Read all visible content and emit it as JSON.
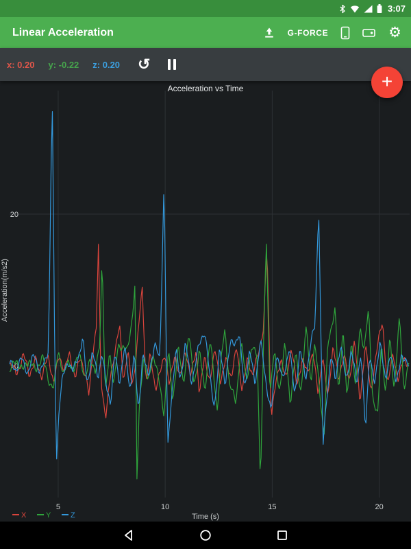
{
  "status_bar": {
    "time": "3:07",
    "icons": [
      "bluetooth-icon",
      "wifi-icon",
      "cellular-icon",
      "battery-icon"
    ]
  },
  "app_bar": {
    "title": "Linear Acceleration",
    "gforce_label": "G-FORCE",
    "icons": [
      "upload-icon",
      "device-icon",
      "record-icon",
      "settings-gear-icon"
    ]
  },
  "readout_bar": {
    "x": "x: 0.20",
    "y": "y: -0.22",
    "z": "z: 0.20",
    "icons": [
      "reset-rotate-icon",
      "pause-icon"
    ]
  },
  "fab": {
    "label": "+"
  },
  "nav_bar": {
    "icons": [
      "back-icon",
      "home-icon",
      "recents-icon"
    ]
  },
  "colors": {
    "app_bar": "#4caf50",
    "status_bar": "#388e3c",
    "readout_bar": "#383d40",
    "chart_bg": "#1a1d1f",
    "fab": "#f44336",
    "x": "#e0564a",
    "y": "#46a54c",
    "z": "#3b9fe0"
  },
  "chart_data": {
    "type": "line",
    "title": "Acceleration vs Time",
    "xlabel": "Time (s)",
    "ylabel": "Acceleration(m/s2)",
    "xlim": [
      2.73,
      21.42
    ],
    "ylim": [
      -17.4,
      36.3
    ],
    "x_ticks": [
      5,
      10,
      15,
      20
    ],
    "y_ticks": [
      0,
      20
    ],
    "grid": true,
    "grid_color": "#2d3134",
    "text_color": "#cfd2d3",
    "legend_position": "bottom-left",
    "series": [
      {
        "name": "X",
        "color": "#d9443c",
        "noise": 0.9,
        "seed": 1,
        "anchors": [
          [
            2.73,
            0.5
          ],
          [
            3.05,
            -1
          ],
          [
            3.35,
            1.3
          ],
          [
            3.65,
            -1.2
          ],
          [
            3.95,
            1
          ],
          [
            4.25,
            -1.5
          ],
          [
            4.55,
            1
          ],
          [
            4.8,
            -2
          ],
          [
            5.05,
            1.5
          ],
          [
            5.3,
            -1
          ],
          [
            5.55,
            1.8
          ],
          [
            5.8,
            -1.5
          ],
          [
            6.05,
            1.2
          ],
          [
            6.3,
            -2
          ],
          [
            6.44,
            -4
          ],
          [
            6.6,
            2
          ],
          [
            6.78,
            5
          ],
          [
            6.88,
            15.4
          ],
          [
            7.0,
            -2
          ],
          [
            7.1,
            -4.5
          ],
          [
            7.24,
            -6.9
          ],
          [
            7.4,
            -2
          ],
          [
            7.6,
            1.5
          ],
          [
            7.87,
            4.8
          ],
          [
            8.05,
            -2
          ],
          [
            8.25,
            2
          ],
          [
            8.45,
            -2.5
          ],
          [
            8.65,
            1.5
          ],
          [
            8.93,
            10
          ],
          [
            9.1,
            -2
          ],
          [
            9.3,
            1.5
          ],
          [
            9.55,
            -3
          ],
          [
            9.8,
            -1
          ],
          [
            10.0,
            2
          ],
          [
            10.2,
            -2.5
          ],
          [
            10.45,
            1.5
          ],
          [
            10.7,
            -2
          ],
          [
            10.95,
            2.5
          ],
          [
            11.2,
            -1.5
          ],
          [
            11.45,
            2
          ],
          [
            11.6,
            -4
          ],
          [
            11.85,
            1.5
          ],
          [
            12.1,
            -2
          ],
          [
            12.35,
            2
          ],
          [
            12.6,
            -2.5
          ],
          [
            12.85,
            1.5
          ],
          [
            13.1,
            -2
          ],
          [
            13.35,
            2.5
          ],
          [
            13.6,
            -3.5
          ],
          [
            13.85,
            1.5
          ],
          [
            14.1,
            -2
          ],
          [
            14.35,
            2
          ],
          [
            14.6,
            5
          ],
          [
            14.75,
            16.4
          ],
          [
            14.95,
            -7
          ],
          [
            15.15,
            -3
          ],
          [
            15.4,
            1.5
          ],
          [
            15.65,
            -2
          ],
          [
            15.9,
            2.5
          ],
          [
            16.15,
            -3
          ],
          [
            16.4,
            1.5
          ],
          [
            16.65,
            -1.5
          ],
          [
            16.9,
            2
          ],
          [
            17.15,
            -4
          ],
          [
            17.35,
            2
          ],
          [
            17.6,
            -5
          ],
          [
            17.85,
            3
          ],
          [
            18.1,
            -2
          ],
          [
            18.35,
            2
          ],
          [
            18.6,
            -3
          ],
          [
            18.85,
            4
          ],
          [
            19.1,
            -5
          ],
          [
            19.35,
            3
          ],
          [
            19.6,
            -4
          ],
          [
            19.85,
            2
          ],
          [
            20.15,
            5.7
          ],
          [
            20.4,
            -3
          ],
          [
            20.65,
            2
          ],
          [
            20.9,
            -2
          ],
          [
            21.15,
            1
          ],
          [
            21.42,
            -0.5
          ]
        ]
      },
      {
        "name": "Y",
        "color": "#2fa53c",
        "noise": 0.9,
        "seed": 2,
        "anchors": [
          [
            2.73,
            -0.4
          ],
          [
            3.05,
            0.8
          ],
          [
            3.35,
            -1
          ],
          [
            3.65,
            1.2
          ],
          [
            3.95,
            -0.8
          ],
          [
            4.25,
            1
          ],
          [
            4.55,
            -1.5
          ],
          [
            4.8,
            -3
          ],
          [
            5.0,
            2
          ],
          [
            5.25,
            -1.5
          ],
          [
            5.5,
            1.2
          ],
          [
            5.75,
            -1
          ],
          [
            6.0,
            1.8
          ],
          [
            6.25,
            -2
          ],
          [
            6.5,
            1.5
          ],
          [
            6.75,
            -1.5
          ],
          [
            6.95,
            3
          ],
          [
            7.05,
            15
          ],
          [
            7.2,
            -4
          ],
          [
            7.4,
            2
          ],
          [
            7.6,
            -2.5
          ],
          [
            7.8,
            2
          ],
          [
            8.05,
            3
          ],
          [
            8.25,
            2
          ],
          [
            8.45,
            6
          ],
          [
            8.6,
            11
          ],
          [
            8.67,
            -16.3
          ],
          [
            8.8,
            -5
          ],
          [
            9.0,
            2
          ],
          [
            9.2,
            -2.5
          ],
          [
            9.45,
            1.5
          ],
          [
            9.7,
            -2
          ],
          [
            9.95,
            -6
          ],
          [
            10.15,
            2
          ],
          [
            10.35,
            -5
          ],
          [
            10.6,
            2.5
          ],
          [
            10.85,
            -2
          ],
          [
            11.1,
            4
          ],
          [
            11.35,
            -2.5
          ],
          [
            11.6,
            2
          ],
          [
            11.85,
            -3
          ],
          [
            12.1,
            3
          ],
          [
            12.43,
            -5.5
          ],
          [
            12.65,
            2
          ],
          [
            12.8,
            5
          ],
          [
            13.0,
            -3
          ],
          [
            13.3,
            -4.5
          ],
          [
            13.55,
            3
          ],
          [
            13.8,
            -2
          ],
          [
            14.05,
            2
          ],
          [
            14.3,
            2
          ],
          [
            14.45,
            -15.5
          ],
          [
            14.6,
            3
          ],
          [
            14.72,
            17
          ],
          [
            14.9,
            -4
          ],
          [
            15.1,
            2
          ],
          [
            15.35,
            -3
          ],
          [
            15.6,
            2.5
          ],
          [
            15.85,
            -5
          ],
          [
            16.1,
            2
          ],
          [
            16.35,
            -3.5
          ],
          [
            16.6,
            5
          ],
          [
            16.8,
            -2
          ],
          [
            17.0,
            3
          ],
          [
            17.25,
            -4
          ],
          [
            17.42,
            -10
          ],
          [
            17.6,
            3
          ],
          [
            17.8,
            6
          ],
          [
            17.95,
            7.5
          ],
          [
            18.1,
            -4
          ],
          [
            18.3,
            5
          ],
          [
            18.5,
            -5
          ],
          [
            18.7,
            4
          ],
          [
            18.9,
            -3
          ],
          [
            19.1,
            5
          ],
          [
            19.3,
            2
          ],
          [
            19.5,
            7.4
          ],
          [
            19.7,
            -4
          ],
          [
            19.93,
            -6.8
          ],
          [
            20.1,
            3
          ],
          [
            20.3,
            -4
          ],
          [
            20.5,
            4
          ],
          [
            20.7,
            -3
          ],
          [
            20.95,
            6
          ],
          [
            21.15,
            -3
          ],
          [
            21.42,
            1
          ]
        ]
      },
      {
        "name": "Z",
        "color": "#3398db",
        "noise": 0.9,
        "seed": 3,
        "anchors": [
          [
            2.73,
            0.4
          ],
          [
            3.0,
            -0.8
          ],
          [
            3.3,
            0.9
          ],
          [
            3.6,
            -0.6
          ],
          [
            3.9,
            1.2
          ],
          [
            4.15,
            -1.0
          ],
          [
            4.35,
            0.6
          ],
          [
            4.55,
            2.5
          ],
          [
            4.72,
            36
          ],
          [
            4.82,
            6
          ],
          [
            4.92,
            -12.8
          ],
          [
            5.05,
            -5
          ],
          [
            5.2,
            -1.5
          ],
          [
            5.45,
            0.8
          ],
          [
            5.7,
            -1.2
          ],
          [
            5.95,
            1.5
          ],
          [
            6.15,
            3.8
          ],
          [
            6.35,
            -2.5
          ],
          [
            6.6,
            1.5
          ],
          [
            6.85,
            -1.5
          ],
          [
            7.05,
            2.2
          ],
          [
            7.25,
            -3
          ],
          [
            7.45,
            -5
          ],
          [
            7.65,
            1.5
          ],
          [
            7.85,
            -2
          ],
          [
            8.1,
            2.5
          ],
          [
            8.35,
            -3.5
          ],
          [
            8.55,
            1.5
          ],
          [
            8.75,
            -6
          ],
          [
            8.95,
            2
          ],
          [
            9.2,
            -2
          ],
          [
            9.5,
            3
          ],
          [
            9.75,
            1
          ],
          [
            9.95,
            24.9
          ],
          [
            10.05,
            2
          ],
          [
            10.12,
            -11.5
          ],
          [
            10.3,
            -4
          ],
          [
            10.5,
            2.5
          ],
          [
            10.7,
            -2
          ],
          [
            10.95,
            3
          ],
          [
            11.2,
            -2.5
          ],
          [
            11.5,
            2
          ],
          [
            11.85,
            4.5
          ],
          [
            12.1,
            -2
          ],
          [
            12.3,
            -5
          ],
          [
            12.55,
            2
          ],
          [
            12.8,
            -2.5
          ],
          [
            13.05,
            3
          ],
          [
            13.45,
            4
          ],
          [
            13.7,
            -3
          ],
          [
            13.95,
            2
          ],
          [
            14.2,
            -2
          ],
          [
            14.45,
            3
          ],
          [
            14.7,
            -2
          ],
          [
            14.95,
            -6
          ],
          [
            15.2,
            2
          ],
          [
            15.5,
            -2.5
          ],
          [
            15.8,
            3
          ],
          [
            16.05,
            -4
          ],
          [
            16.3,
            2
          ],
          [
            16.55,
            -2
          ],
          [
            16.8,
            3.5
          ],
          [
            17.0,
            5
          ],
          [
            17.17,
            21.3
          ],
          [
            17.28,
            3
          ],
          [
            17.38,
            -10.5
          ],
          [
            17.55,
            -4
          ],
          [
            17.75,
            2
          ],
          [
            17.95,
            -2.5
          ],
          [
            18.2,
            3
          ],
          [
            18.45,
            -2
          ],
          [
            18.7,
            2.5
          ],
          [
            18.95,
            -3
          ],
          [
            19.15,
            2
          ],
          [
            19.36,
            -8.6
          ],
          [
            19.55,
            2
          ],
          [
            19.8,
            -3
          ],
          [
            20.05,
            3.5
          ],
          [
            20.3,
            -2
          ],
          [
            20.55,
            2
          ],
          [
            20.8,
            -3
          ],
          [
            21.05,
            2
          ],
          [
            21.42,
            -0.5
          ]
        ]
      }
    ]
  }
}
